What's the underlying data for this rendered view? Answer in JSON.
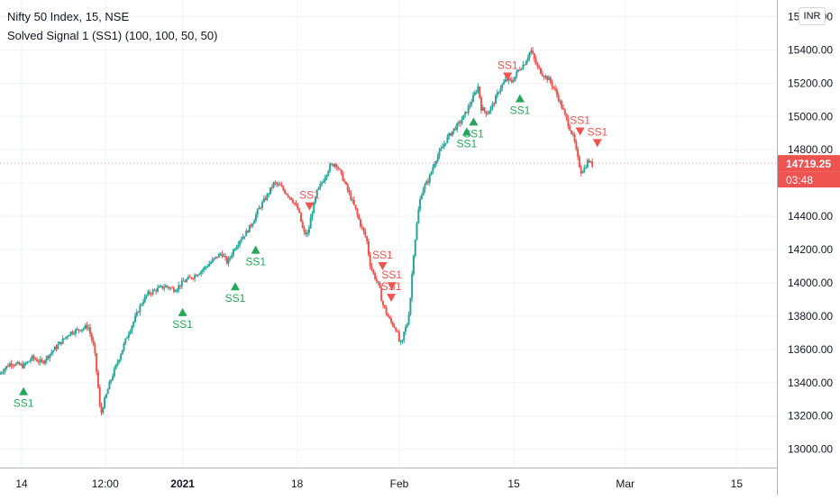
{
  "legend": {
    "symbol_line": "Nifty 50 Index, 15, NSE",
    "indicator_line": "Solved Signal 1 (SS1) (100, 100, 50, 50)"
  },
  "currency_button": "INR",
  "colors": {
    "up": "#26a69a",
    "down": "#ef5350",
    "buy_signal": "#26a65b",
    "sell_signal": "#f05350",
    "price_badge": "#ef5350",
    "axis_text": "#131722",
    "grid": "#f0f3fa"
  },
  "chart_data": {
    "type": "candlestick",
    "title": "Nifty 50 Index, 15, NSE",
    "indicator": "Solved Signal 1 (SS1) (100, 100, 50, 50)",
    "ylim": [
      12880,
      15620
    ],
    "y_ticks": [
      "15600.00",
      "15400.00",
      "15200.00",
      "15000.00",
      "14800.00",
      "14719.25",
      "14600.00",
      "14400.00",
      "14200.00",
      "14000.00",
      "13800.00",
      "13600.00",
      "13400.00",
      "13200.00",
      "13000.00"
    ],
    "y_tick_values": [
      15600,
      15400,
      15200,
      15000,
      14800,
      14719.25,
      14600,
      14400,
      14200,
      14000,
      13800,
      13600,
      13400,
      13200,
      13000
    ],
    "x_ticks": [
      "14",
      "12:00",
      "2021",
      "18",
      "Feb",
      "15",
      "Mar",
      "15"
    ],
    "x_tick_bold": [
      false,
      false,
      true,
      false,
      false,
      false,
      false,
      false
    ],
    "x_tick_positions": [
      0.0,
      13.5,
      26.0,
      44.5,
      61.0,
      79.5,
      97.5,
      115.5
    ],
    "x_range": [
      -3.5,
      122
    ],
    "last_price": "14719.25",
    "countdown": "03:48",
    "price_path": [
      [
        -3.5,
        13450
      ],
      [
        -1.5,
        13520
      ],
      [
        0.5,
        13500
      ],
      [
        2.0,
        13550
      ],
      [
        3.5,
        13520
      ],
      [
        5.0,
        13580
      ],
      [
        6.5,
        13640
      ],
      [
        8.0,
        13700
      ],
      [
        9.5,
        13720
      ],
      [
        11.0,
        13740
      ],
      [
        12.0,
        13600
      ],
      [
        12.6,
        13380
      ],
      [
        13.0,
        13200
      ],
      [
        13.4,
        13260
      ],
      [
        14.5,
        13400
      ],
      [
        15.5,
        13500
      ],
      [
        16.5,
        13600
      ],
      [
        17.5,
        13700
      ],
      [
        18.5,
        13780
      ],
      [
        19.5,
        13870
      ],
      [
        20.5,
        13930
      ],
      [
        22.0,
        13960
      ],
      [
        23.5,
        13980
      ],
      [
        25.0,
        13960
      ],
      [
        26.5,
        14010
      ],
      [
        28.0,
        14040
      ],
      [
        29.5,
        14080
      ],
      [
        31.0,
        14130
      ],
      [
        32.5,
        14180
      ],
      [
        33.5,
        14120
      ],
      [
        34.5,
        14200
      ],
      [
        35.5,
        14260
      ],
      [
        36.5,
        14300
      ],
      [
        37.5,
        14360
      ],
      [
        38.5,
        14440
      ],
      [
        40.0,
        14530
      ],
      [
        41.0,
        14600
      ],
      [
        42.0,
        14580
      ],
      [
        43.0,
        14540
      ],
      [
        44.0,
        14500
      ],
      [
        45.0,
        14430
      ],
      [
        45.8,
        14300
      ],
      [
        46.5,
        14290
      ],
      [
        47.0,
        14400
      ],
      [
        48.0,
        14550
      ],
      [
        49.0,
        14620
      ],
      [
        50.0,
        14700
      ],
      [
        51.0,
        14720
      ],
      [
        52.0,
        14640
      ],
      [
        53.0,
        14550
      ],
      [
        54.0,
        14460
      ],
      [
        55.0,
        14350
      ],
      [
        56.0,
        14260
      ],
      [
        56.5,
        14120
      ],
      [
        57.0,
        14060
      ],
      [
        58.0,
        13980
      ],
      [
        58.5,
        13880
      ],
      [
        59.5,
        13790
      ],
      [
        60.0,
        13760
      ],
      [
        60.8,
        13720
      ],
      [
        61.3,
        13640
      ],
      [
        61.7,
        13630
      ],
      [
        62.0,
        13700
      ],
      [
        62.6,
        13760
      ],
      [
        63.0,
        13880
      ],
      [
        63.5,
        14150
      ],
      [
        64.0,
        14320
      ],
      [
        64.5,
        14480
      ],
      [
        65.0,
        14560
      ],
      [
        66.0,
        14620
      ],
      [
        67.0,
        14730
      ],
      [
        68.0,
        14800
      ],
      [
        69.0,
        14870
      ],
      [
        70.0,
        14920
      ],
      [
        71.0,
        14960
      ],
      [
        72.0,
        15020
      ],
      [
        73.0,
        15100
      ],
      [
        74.0,
        15180
      ],
      [
        74.5,
        15050
      ],
      [
        75.5,
        15020
      ],
      [
        76.5,
        15080
      ],
      [
        77.5,
        15170
      ],
      [
        78.5,
        15220
      ],
      [
        79.5,
        15210
      ],
      [
        80.5,
        15280
      ],
      [
        81.5,
        15320
      ],
      [
        82.5,
        15400
      ],
      [
        83.5,
        15300
      ],
      [
        84.5,
        15250
      ],
      [
        85.5,
        15220
      ],
      [
        86.5,
        15150
      ],
      [
        87.5,
        15060
      ],
      [
        88.5,
        14960
      ],
      [
        89.5,
        14860
      ],
      [
        90.0,
        14760
      ],
      [
        90.6,
        14670
      ],
      [
        91.2,
        14690
      ],
      [
        91.8,
        14740
      ],
      [
        92.3,
        14710
      ]
    ],
    "signals": [
      {
        "type": "buy",
        "label": "SS1",
        "x": 0.3,
        "price": 13450
      },
      {
        "type": "buy",
        "label": "SS1",
        "x": 26.0,
        "price": 13925
      },
      {
        "type": "buy",
        "label": "SS1",
        "x": 34.5,
        "price": 14080
      },
      {
        "type": "buy",
        "label": "SS1",
        "x": 37.8,
        "price": 14300
      },
      {
        "type": "sell",
        "label": "SS1",
        "x": 46.5,
        "price": 14430
      },
      {
        "type": "sell",
        "label": "SS1",
        "x": 58.3,
        "price": 14070
      },
      {
        "type": "sell",
        "label": "SS1",
        "x": 59.8,
        "price": 13950
      },
      {
        "type": "sell",
        "label": "SS1",
        "x": 59.7,
        "price": 13880
      },
      {
        "type": "buy",
        "label": "SS1",
        "x": 71.9,
        "price": 15010
      },
      {
        "type": "buy",
        "label": "SS1",
        "x": 73.0,
        "price": 15070
      },
      {
        "type": "sell",
        "label": "SS1",
        "x": 78.5,
        "price": 15210
      },
      {
        "type": "buy",
        "label": "SS1",
        "x": 80.5,
        "price": 15210
      },
      {
        "type": "sell",
        "label": "SS1",
        "x": 90.2,
        "price": 14880
      },
      {
        "type": "sell",
        "label": "SS1",
        "x": 93.0,
        "price": 14810
      }
    ]
  }
}
